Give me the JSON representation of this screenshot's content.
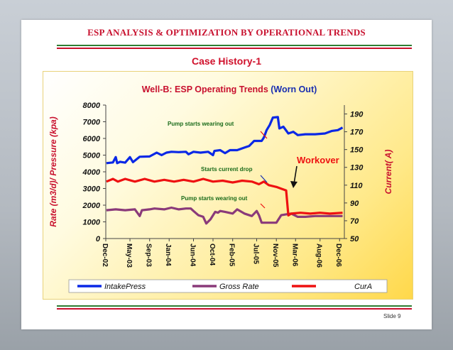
{
  "slide": {
    "title": "ESP ANALYSIS & OPTIMIZATION BY OPERATIONAL TRENDS",
    "subtitle": "Case History-1",
    "slide_number": "Slide 9"
  },
  "colors": {
    "intake": "#0a28e6",
    "gross": "#8a3a7a",
    "cura": "#ee1111",
    "accent": "#c8102e",
    "green": "#2e7d32"
  },
  "chart_data": {
    "type": "line",
    "title_prefix": "Well-B: ESP Operating Trends",
    "title_suffix": "(Worn Out)",
    "ylabel_left": "Rate (m3/d)/ Pressure (kpa)",
    "ylabel_right": "Current( A)",
    "left_ticks": [
      "0",
      "1000",
      "2000",
      "3000",
      "4000",
      "5000",
      "6000",
      "7000",
      "8000"
    ],
    "right_ticks": [
      "50",
      "70",
      "90",
      "110",
      "130",
      "150",
      "170",
      "190"
    ],
    "ylim_left": [
      0,
      8000
    ],
    "ylim_right": [
      50,
      200
    ],
    "xlim": [
      "2002-12-01",
      "2006-12-31"
    ],
    "x_ticks": [
      {
        "label": "Dec-02",
        "date": "2002-12-01"
      },
      {
        "label": "May-03",
        "date": "2003-05-01"
      },
      {
        "label": "Sep-03",
        "date": "2003-09-01"
      },
      {
        "label": "Jan-04",
        "date": "2004-01-01"
      },
      {
        "label": "Jun-04",
        "date": "2004-06-01"
      },
      {
        "label": "Oct-04",
        "date": "2004-10-01"
      },
      {
        "label": "Feb-05",
        "date": "2005-02-01"
      },
      {
        "label": "Jul-05",
        "date": "2005-07-01"
      },
      {
        "label": "Nov-05",
        "date": "2005-11-01"
      },
      {
        "label": "Mar-06",
        "date": "2006-03-01"
      },
      {
        "label": "Aug-06",
        "date": "2006-08-01"
      },
      {
        "label": "Dec-06",
        "date": "2006-12-01"
      }
    ],
    "series": [
      {
        "name": "IntakePress",
        "axis": "left",
        "points": [
          [
            "2002-12-05",
            4520
          ],
          [
            "2003-01-15",
            4560
          ],
          [
            "2003-02-01",
            4880
          ],
          [
            "2003-02-10",
            4520
          ],
          [
            "2003-03-01",
            4600
          ],
          [
            "2003-04-01",
            4550
          ],
          [
            "2003-05-01",
            4880
          ],
          [
            "2003-05-20",
            4580
          ],
          [
            "2003-07-01",
            4900
          ],
          [
            "2003-09-01",
            4920
          ],
          [
            "2003-10-15",
            5150
          ],
          [
            "2003-11-15",
            5000
          ],
          [
            "2003-12-15",
            5150
          ],
          [
            "2004-01-15",
            5200
          ],
          [
            "2004-03-01",
            5180
          ],
          [
            "2004-04-15",
            5200
          ],
          [
            "2004-05-01",
            5050
          ],
          [
            "2004-06-01",
            5200
          ],
          [
            "2004-07-15",
            5150
          ],
          [
            "2004-09-01",
            5200
          ],
          [
            "2004-10-01",
            5000
          ],
          [
            "2004-10-10",
            5250
          ],
          [
            "2004-11-15",
            5300
          ],
          [
            "2004-12-15",
            5120
          ],
          [
            "2005-01-15",
            5300
          ],
          [
            "2005-03-01",
            5300
          ],
          [
            "2005-04-15",
            5450
          ],
          [
            "2005-05-15",
            5550
          ],
          [
            "2005-06-15",
            5850
          ],
          [
            "2005-07-15",
            5850
          ],
          [
            "2005-08-01",
            5850
          ],
          [
            "2005-08-15",
            6050
          ],
          [
            "2005-09-01",
            6500
          ],
          [
            "2005-09-20",
            6800
          ],
          [
            "2005-10-10",
            7250
          ],
          [
            "2005-11-10",
            7280
          ],
          [
            "2005-11-20",
            6600
          ],
          [
            "2005-12-15",
            6700
          ],
          [
            "2006-01-15",
            6300
          ],
          [
            "2006-02-15",
            6400
          ],
          [
            "2006-03-15",
            6200
          ],
          [
            "2006-05-01",
            6250
          ],
          [
            "2006-07-01",
            6250
          ],
          [
            "2006-09-01",
            6300
          ],
          [
            "2006-10-15",
            6450
          ],
          [
            "2006-11-20",
            6500
          ],
          [
            "2006-12-20",
            6650
          ]
        ]
      },
      {
        "name": "Gross Rate",
        "axis": "left",
        "points": [
          [
            "2002-12-05",
            1700
          ],
          [
            "2003-02-01",
            1750
          ],
          [
            "2003-04-01",
            1700
          ],
          [
            "2003-06-01",
            1750
          ],
          [
            "2003-07-01",
            1350
          ],
          [
            "2003-07-15",
            1700
          ],
          [
            "2003-09-01",
            1750
          ],
          [
            "2003-10-01",
            1800
          ],
          [
            "2003-12-01",
            1750
          ],
          [
            "2004-01-15",
            1850
          ],
          [
            "2004-03-01",
            1750
          ],
          [
            "2004-04-15",
            1800
          ],
          [
            "2004-05-15",
            1800
          ],
          [
            "2004-06-01",
            1650
          ],
          [
            "2004-07-01",
            1400
          ],
          [
            "2004-08-01",
            1300
          ],
          [
            "2004-08-20",
            900
          ],
          [
            "2004-09-15",
            1150
          ],
          [
            "2004-10-15",
            1600
          ],
          [
            "2004-11-01",
            1550
          ],
          [
            "2004-11-15",
            1650
          ],
          [
            "2004-12-15",
            1600
          ],
          [
            "2005-02-01",
            1500
          ],
          [
            "2005-03-01",
            1750
          ],
          [
            "2005-04-15",
            1500
          ],
          [
            "2005-06-01",
            1350
          ],
          [
            "2005-07-01",
            1650
          ],
          [
            "2005-07-15",
            1400
          ],
          [
            "2005-08-01",
            950
          ],
          [
            "2005-09-15",
            950
          ],
          [
            "2005-11-01",
            950
          ],
          [
            "2005-12-01",
            1400
          ],
          [
            "2006-02-01",
            1500
          ],
          [
            "2006-03-15",
            1300
          ],
          [
            "2006-05-01",
            1300
          ],
          [
            "2006-07-01",
            1350
          ],
          [
            "2006-09-01",
            1350
          ],
          [
            "2006-11-01",
            1350
          ],
          [
            "2006-12-20",
            1350
          ]
        ]
      },
      {
        "name": "CurA",
        "axis": "right",
        "points": [
          [
            "2002-12-05",
            114
          ],
          [
            "2003-01-15",
            117
          ],
          [
            "2003-02-15",
            114
          ],
          [
            "2003-04-01",
            117
          ],
          [
            "2003-06-01",
            114
          ],
          [
            "2003-08-01",
            117
          ],
          [
            "2003-10-01",
            114
          ],
          [
            "2003-12-01",
            116
          ],
          [
            "2004-02-01",
            114
          ],
          [
            "2004-04-01",
            116
          ],
          [
            "2004-06-01",
            114
          ],
          [
            "2004-08-01",
            117
          ],
          [
            "2004-10-01",
            114
          ],
          [
            "2004-12-01",
            115
          ],
          [
            "2005-02-01",
            113
          ],
          [
            "2005-04-01",
            115
          ],
          [
            "2005-06-01",
            114
          ],
          [
            "2005-07-15",
            111
          ],
          [
            "2005-08-15",
            114
          ],
          [
            "2005-09-15",
            110
          ],
          [
            "2005-11-01",
            108
          ],
          [
            "2005-12-01",
            106
          ],
          [
            "2006-01-01",
            104
          ],
          [
            "2006-01-15",
            76
          ],
          [
            "2006-02-01",
            78
          ],
          [
            "2006-04-01",
            79
          ],
          [
            "2006-06-01",
            78
          ],
          [
            "2006-08-01",
            79
          ],
          [
            "2006-10-01",
            78
          ],
          [
            "2006-12-20",
            79
          ]
        ]
      }
    ],
    "annotations": [
      {
        "text": "Pump starts wearing out",
        "color": "#1a6b1a",
        "size": "small"
      },
      {
        "text": "Starts current drop",
        "color": "#1a6b1a",
        "size": "small"
      },
      {
        "text": "Pump starts wearing out",
        "color": "#1a6b1a",
        "size": "small"
      },
      {
        "text": "Workover",
        "color": "#ee1111",
        "size": "large"
      }
    ],
    "legend": {
      "placement": "bottom",
      "entries": [
        "IntakePress",
        "Gross Rate",
        "CurA"
      ]
    }
  }
}
